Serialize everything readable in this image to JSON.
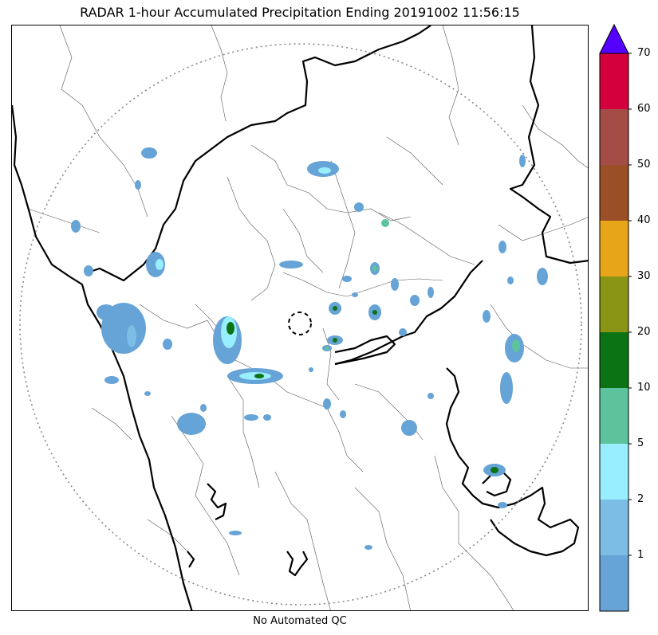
{
  "title": "RADAR 1-hour Accumulated Precipitation Ending 20191002 11:56:15",
  "footer_note": "No Automated QC",
  "colorbar": {
    "levels": [
      "",
      "1",
      "2",
      "5",
      "10",
      "20",
      "30",
      "40",
      "50",
      "60",
      "70"
    ],
    "colors": [
      "#66a3d6",
      "#7bbde5",
      "#98eefc",
      "#5dc39c",
      "#0c7315",
      "#8a9516",
      "#e7a61a",
      "#9b4f27",
      "#a44c46",
      "#d4003e"
    ],
    "extend_color": "#5500ff"
  },
  "map_features": {
    "coastline_color": "#000000",
    "state_boundary_color": "#000000",
    "district_boundary_color": "#555555",
    "range_ring_color": "#888888",
    "radar_site_marker": "dashed-circle"
  }
}
